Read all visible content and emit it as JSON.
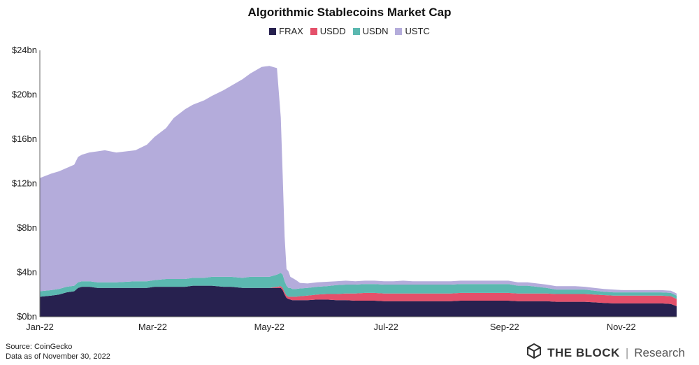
{
  "chart_data": {
    "type": "area",
    "stacked": true,
    "title": "Algorithmic Stablecoins Market Cap",
    "xlabel": "",
    "ylabel": "",
    "ylim": [
      0,
      24
    ],
    "yticks": [
      0,
      4,
      8,
      12,
      16,
      20,
      24
    ],
    "ytick_labels": [
      "$0bn",
      "$4bn",
      "$8bn",
      "$12bn",
      "$16bn",
      "$20bn",
      "$24bn"
    ],
    "x_day_range": [
      0,
      333
    ],
    "xticks": [
      {
        "label": "Jan-22",
        "day": 0
      },
      {
        "label": "Mar-22",
        "day": 59
      },
      {
        "label": "May-22",
        "day": 120
      },
      {
        "label": "Jul-22",
        "day": 181
      },
      {
        "label": "Sep-22",
        "day": 243
      },
      {
        "label": "Nov-22",
        "day": 304
      }
    ],
    "legend_position": "top-center",
    "grid": false,
    "x": [
      0,
      6,
      10,
      14,
      18,
      20,
      22,
      26,
      30,
      34,
      40,
      50,
      56,
      60,
      66,
      70,
      76,
      80,
      86,
      90,
      96,
      100,
      106,
      110,
      116,
      120,
      124,
      126,
      127,
      128,
      129,
      130,
      131,
      132,
      134,
      136,
      140,
      145,
      150,
      155,
      160,
      165,
      170,
      175,
      180,
      185,
      190,
      195,
      200,
      205,
      210,
      215,
      220,
      225,
      230,
      235,
      240,
      245,
      250,
      255,
      260,
      265,
      270,
      275,
      280,
      285,
      290,
      295,
      300,
      305,
      310,
      315,
      320,
      325,
      330,
      333
    ],
    "series": [
      {
        "name": "FRAX",
        "color": "#27214f",
        "values": [
          1.8,
          1.9,
          2.0,
          2.2,
          2.3,
          2.6,
          2.7,
          2.7,
          2.6,
          2.6,
          2.6,
          2.6,
          2.6,
          2.7,
          2.7,
          2.7,
          2.7,
          2.8,
          2.8,
          2.8,
          2.7,
          2.7,
          2.6,
          2.6,
          2.6,
          2.6,
          2.6,
          2.6,
          2.4,
          2.0,
          1.7,
          1.6,
          1.55,
          1.5,
          1.5,
          1.5,
          1.5,
          1.55,
          1.55,
          1.5,
          1.5,
          1.45,
          1.45,
          1.45,
          1.4,
          1.4,
          1.4,
          1.4,
          1.4,
          1.4,
          1.4,
          1.4,
          1.45,
          1.45,
          1.45,
          1.45,
          1.45,
          1.45,
          1.4,
          1.4,
          1.4,
          1.4,
          1.35,
          1.35,
          1.35,
          1.35,
          1.3,
          1.25,
          1.2,
          1.2,
          1.2,
          1.2,
          1.2,
          1.2,
          1.15,
          0.95
        ]
      },
      {
        "name": "USDD",
        "color": "#e4506a",
        "values": [
          0,
          0,
          0,
          0,
          0,
          0,
          0,
          0,
          0,
          0,
          0,
          0,
          0,
          0,
          0,
          0,
          0,
          0,
          0,
          0,
          0,
          0,
          0,
          0,
          0,
          0,
          0.1,
          0.15,
          0.2,
          0.2,
          0.2,
          0.2,
          0.25,
          0.3,
          0.3,
          0.35,
          0.4,
          0.45,
          0.5,
          0.55,
          0.6,
          0.65,
          0.7,
          0.7,
          0.7,
          0.7,
          0.7,
          0.7,
          0.7,
          0.7,
          0.7,
          0.7,
          0.7,
          0.7,
          0.7,
          0.7,
          0.7,
          0.7,
          0.7,
          0.7,
          0.7,
          0.7,
          0.7,
          0.7,
          0.7,
          0.7,
          0.7,
          0.7,
          0.7,
          0.7,
          0.7,
          0.7,
          0.7,
          0.7,
          0.7,
          0.65
        ]
      },
      {
        "name": "USDN",
        "color": "#5bb8b0",
        "values": [
          0.5,
          0.5,
          0.5,
          0.5,
          0.5,
          0.5,
          0.5,
          0.5,
          0.5,
          0.5,
          0.5,
          0.6,
          0.6,
          0.6,
          0.7,
          0.7,
          0.7,
          0.7,
          0.7,
          0.8,
          0.9,
          0.9,
          0.9,
          1.0,
          1.0,
          1.0,
          1.1,
          1.2,
          1.2,
          1.0,
          0.9,
          0.8,
          0.8,
          0.7,
          0.7,
          0.7,
          0.7,
          0.7,
          0.7,
          0.8,
          0.8,
          0.8,
          0.8,
          0.8,
          0.8,
          0.8,
          0.8,
          0.8,
          0.8,
          0.8,
          0.8,
          0.8,
          0.8,
          0.8,
          0.8,
          0.8,
          0.8,
          0.8,
          0.7,
          0.7,
          0.6,
          0.5,
          0.4,
          0.4,
          0.4,
          0.4,
          0.35,
          0.3,
          0.3,
          0.3,
          0.3,
          0.3,
          0.3,
          0.3,
          0.3,
          0.3
        ]
      },
      {
        "name": "USTC",
        "color": "#b4acdb",
        "values": [
          10.2,
          10.5,
          10.6,
          10.7,
          10.9,
          11.3,
          11.4,
          11.6,
          11.8,
          11.9,
          11.7,
          11.8,
          12.3,
          12.9,
          13.6,
          14.5,
          15.3,
          15.6,
          16.0,
          16.3,
          16.8,
          17.2,
          17.9,
          18.3,
          18.9,
          19.0,
          18.6,
          14.0,
          9.0,
          4.0,
          1.5,
          1.5,
          1.0,
          1.0,
          0.8,
          0.5,
          0.4,
          0.4,
          0.4,
          0.35,
          0.35,
          0.3,
          0.3,
          0.3,
          0.3,
          0.3,
          0.35,
          0.3,
          0.3,
          0.3,
          0.3,
          0.3,
          0.3,
          0.3,
          0.3,
          0.3,
          0.3,
          0.3,
          0.3,
          0.3,
          0.3,
          0.3,
          0.3,
          0.3,
          0.3,
          0.25,
          0.25,
          0.25,
          0.25,
          0.2,
          0.2,
          0.2,
          0.2,
          0.2,
          0.2,
          0.2
        ]
      }
    ]
  },
  "footer": {
    "source": "Source:  CoinGecko",
    "data_as_of": "Data as of November 30, 2022"
  },
  "brand": {
    "name": "THE BLOCK",
    "separator": "|",
    "suffix": "Research",
    "icon": "the-block-logo-icon"
  }
}
